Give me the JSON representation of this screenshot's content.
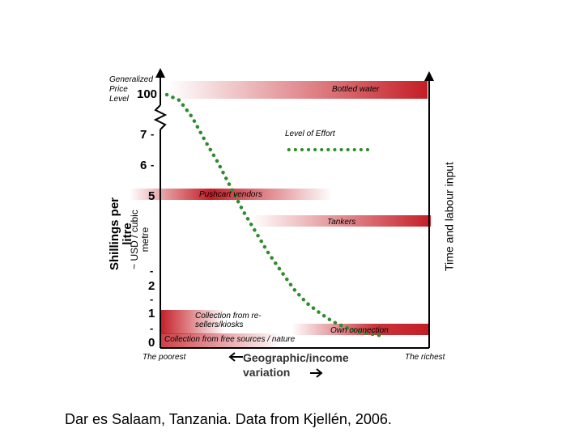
{
  "chart_data": {
    "type": "line",
    "title": "",
    "y_axis": {
      "label_main": "Shillings per litre",
      "label_sub": "~ USD / cubic metre",
      "tick_labels": [
        "0",
        "1",
        "2",
        "5",
        "6",
        "7",
        "100"
      ],
      "top_label": "Generalized Price Level"
    },
    "y2_axis": {
      "label": "Time and labour input"
    },
    "x_axis": {
      "left_label": "The poorest",
      "right_label": "The richest",
      "label": "Geographic/income variation"
    },
    "bands": [
      {
        "name": "Bottled water",
        "level": 100
      },
      {
        "name": "Pushcart vendors",
        "level": 5
      },
      {
        "name": "Tankers",
        "level": 4
      },
      {
        "name": "Collection from re-sellers/kiosks",
        "level": 1
      },
      {
        "name": "Own connection",
        "level": 0.5
      },
      {
        "name": "Collection from free sources / nature",
        "level": 0
      }
    ],
    "series": [
      {
        "name": "Price curve",
        "style": "dotted",
        "color": "#2e8b2e",
        "x": [
          0.0,
          0.05,
          0.1,
          0.15,
          0.2,
          0.25,
          0.3,
          0.35,
          0.4,
          0.45,
          0.5,
          0.55,
          0.6,
          0.65,
          0.7,
          0.75,
          0.8,
          0.85
        ],
        "y": [
          7.7,
          7.6,
          7.3,
          6.8,
          6.1,
          5.3,
          4.5,
          3.8,
          3.1,
          2.5,
          1.9,
          1.4,
          1.05,
          0.75,
          0.55,
          0.4,
          0.32,
          0.25
        ]
      },
      {
        "name": "Level of Effort",
        "style": "dotted",
        "color": "#2e8b2e",
        "x": [
          0.48,
          0.8
        ],
        "y": [
          6.5,
          6.5
        ]
      }
    ],
    "annotations": [
      "Level of Effort"
    ]
  },
  "labels": {
    "gpl_line1": "Generalized",
    "gpl_line2": "Price",
    "gpl_line3": "Level",
    "dash": "-"
  },
  "caption": "Dar es Salaam, Tanzania. Data from Kjellén, 2006.",
  "colors": {
    "band": "#c41e26",
    "curve": "#2e8b2e",
    "axis": "#000000"
  }
}
